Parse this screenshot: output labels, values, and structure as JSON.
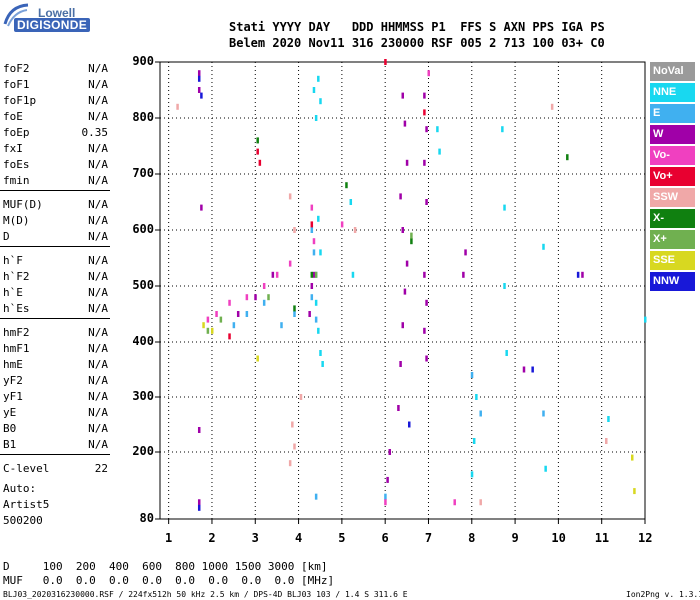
{
  "logo": {
    "top": "Lowell",
    "bottom": "DIGISONDE"
  },
  "header": {
    "line1": "Stati YYYY DAY   DDD HHMMSS P1  FFS S AXN PPS IGA PS",
    "line2": "Belem 2020 Nov11 316 230000 RSF 005 2 713 100 03+ C0"
  },
  "params": [
    {
      "k": "foF2",
      "v": "N/A"
    },
    {
      "k": "foF1",
      "v": "N/A"
    },
    {
      "k": "foF1p",
      "v": "N/A"
    },
    {
      "k": "foE",
      "v": "N/A"
    },
    {
      "k": "foEp",
      "v": "0.35"
    },
    {
      "k": "fxI",
      "v": "N/A"
    },
    {
      "k": "foEs",
      "v": "N/A"
    },
    {
      "k": "fmin",
      "v": "N/A"
    },
    {
      "k": "MUF(D)",
      "v": "N/A"
    },
    {
      "k": "M(D)",
      "v": "N/A"
    },
    {
      "k": "D",
      "v": "N/A"
    },
    {
      "k": "h`F",
      "v": "N/A"
    },
    {
      "k": "h`F2",
      "v": "N/A"
    },
    {
      "k": "h`E",
      "v": "N/A"
    },
    {
      "k": "h`Es",
      "v": "N/A"
    },
    {
      "k": "hmF2",
      "v": "N/A"
    },
    {
      "k": "hmF1",
      "v": "N/A"
    },
    {
      "k": "hmE",
      "v": "N/A"
    },
    {
      "k": "yF2",
      "v": "N/A"
    },
    {
      "k": "yF1",
      "v": "N/A"
    },
    {
      "k": "yE",
      "v": "N/A"
    },
    {
      "k": "B0",
      "v": "N/A"
    },
    {
      "k": "B1",
      "v": "N/A"
    },
    {
      "k": "C-level",
      "v": "22"
    }
  ],
  "autoscale": {
    "line1": "Auto:",
    "line2": "Artist5",
    "line3": "500200"
  },
  "legend": [
    {
      "label": "NoVal",
      "color": "#9a9a9a"
    },
    {
      "label": "NNE",
      "color": "#18d8f0"
    },
    {
      "label": "E",
      "color": "#40b0f0"
    },
    {
      "label": "W",
      "color": "#a000a8"
    },
    {
      "label": "Vo-",
      "color": "#f040c0"
    },
    {
      "label": "Vo+",
      "color": "#e80030"
    },
    {
      "label": "SSW",
      "color": "#f0a8a8"
    },
    {
      "label": "X-",
      "color": "#108010"
    },
    {
      "label": "X+",
      "color": "#70b050"
    },
    {
      "label": "SSE",
      "color": "#d8d820"
    },
    {
      "label": "NNW",
      "color": "#1818d8"
    }
  ],
  "axes": {
    "y_ticks": [
      "900",
      "800",
      "700",
      "600",
      "500",
      "400",
      "300",
      "200",
      "80"
    ],
    "x_ticks": [
      "1",
      "2",
      "3",
      "4",
      "5",
      "6",
      "7",
      "8",
      "9",
      "10",
      "11",
      "12"
    ]
  },
  "bottom": {
    "row1": "D     100  200  400  600  800 1000 1500 3000 [km]",
    "row2": "MUF   0.0  0.0  0.0  0.0  0.0  0.0  0.0  0.0 [MHz]",
    "footer_left": "BLJ03_2020316230000.RSF / 224fx512h 50 kHz 2.5 km / DPS-4D BLJ03 103 / 1.4 S 311.6 E",
    "footer_right": "Ion2Png v. 1.3.17"
  },
  "chart_data": {
    "type": "scatter",
    "title": "",
    "xlabel": "",
    "ylabel": "",
    "xlim": [
      0.8,
      12
    ],
    "ylim": [
      80,
      900
    ],
    "series": [
      {
        "name": "NNE",
        "color": "#18d8f0",
        "points": [
          [
            4.35,
            850
          ],
          [
            4.45,
            870
          ],
          [
            4.5,
            830
          ],
          [
            4.4,
            800
          ],
          [
            4.45,
            620
          ],
          [
            4.5,
            560
          ],
          [
            4.4,
            470
          ],
          [
            4.45,
            420
          ],
          [
            4.5,
            380
          ],
          [
            4.55,
            360
          ],
          [
            5.2,
            650
          ],
          [
            5.25,
            520
          ],
          [
            7.2,
            780
          ],
          [
            7.25,
            740
          ],
          [
            8.0,
            160
          ],
          [
            8.05,
            220
          ],
          [
            8.1,
            300
          ],
          [
            8.7,
            780
          ],
          [
            8.75,
            640
          ],
          [
            8.75,
            500
          ],
          [
            8.8,
            380
          ],
          [
            9.65,
            570
          ],
          [
            9.7,
            170
          ],
          [
            11.15,
            260
          ],
          [
            12.0,
            440
          ]
        ]
      },
      {
        "name": "E",
        "color": "#40b0f0",
        "points": [
          [
            4.3,
            600
          ],
          [
            4.35,
            560
          ],
          [
            4.4,
            520
          ],
          [
            4.3,
            480
          ],
          [
            4.4,
            440
          ],
          [
            3.9,
            450
          ],
          [
            3.6,
            430
          ],
          [
            2.8,
            450
          ],
          [
            2.5,
            430
          ],
          [
            3.2,
            470
          ],
          [
            8.0,
            340
          ],
          [
            8.2,
            270
          ],
          [
            9.65,
            270
          ],
          [
            6.0,
            120
          ],
          [
            4.4,
            120
          ]
        ]
      },
      {
        "name": "W",
        "color": "#a000a8",
        "points": [
          [
            1.7,
            880
          ],
          [
            1.7,
            850
          ],
          [
            1.75,
            640
          ],
          [
            6.4,
            840
          ],
          [
            6.45,
            790
          ],
          [
            6.5,
            720
          ],
          [
            6.35,
            660
          ],
          [
            6.4,
            600
          ],
          [
            6.5,
            540
          ],
          [
            6.45,
            490
          ],
          [
            6.4,
            430
          ],
          [
            6.35,
            360
          ],
          [
            6.3,
            280
          ],
          [
            6.1,
            200
          ],
          [
            6.05,
            150
          ],
          [
            6.9,
            840
          ],
          [
            6.95,
            780
          ],
          [
            6.9,
            720
          ],
          [
            6.95,
            650
          ],
          [
            6.9,
            520
          ],
          [
            6.95,
            470
          ],
          [
            6.9,
            420
          ],
          [
            6.95,
            370
          ],
          [
            7.8,
            520
          ],
          [
            7.85,
            560
          ],
          [
            4.3,
            500
          ],
          [
            4.35,
            520
          ],
          [
            4.25,
            450
          ],
          [
            3.4,
            520
          ],
          [
            3.0,
            480
          ],
          [
            2.6,
            450
          ],
          [
            1.7,
            240
          ],
          [
            1.7,
            110
          ],
          [
            10.55,
            520
          ],
          [
            9.2,
            350
          ]
        ]
      },
      {
        "name": "Vo-",
        "color": "#f040c0",
        "points": [
          [
            4.3,
            640
          ],
          [
            4.35,
            580
          ],
          [
            3.8,
            540
          ],
          [
            3.5,
            520
          ],
          [
            3.2,
            500
          ],
          [
            2.8,
            480
          ],
          [
            2.4,
            470
          ],
          [
            2.1,
            450
          ],
          [
            1.9,
            440
          ],
          [
            5.0,
            610
          ],
          [
            6.0,
            110
          ],
          [
            7.6,
            110
          ],
          [
            7.0,
            880
          ]
        ]
      },
      {
        "name": "Vo+",
        "color": "#e80030",
        "points": [
          [
            3.05,
            740
          ],
          [
            3.1,
            720
          ],
          [
            6.0,
            900
          ],
          [
            2.4,
            410
          ],
          [
            4.3,
            610
          ],
          [
            6.9,
            810
          ]
        ]
      },
      {
        "name": "SSW",
        "color": "#f0a8a8",
        "points": [
          [
            1.2,
            820
          ],
          [
            3.8,
            660
          ],
          [
            3.9,
            600
          ],
          [
            3.85,
            250
          ],
          [
            3.9,
            210
          ],
          [
            3.8,
            180
          ],
          [
            4.05,
            300
          ],
          [
            5.3,
            600
          ],
          [
            9.85,
            820
          ],
          [
            11.1,
            220
          ],
          [
            8.2,
            110
          ]
        ]
      },
      {
        "name": "X-",
        "color": "#108010",
        "points": [
          [
            3.05,
            760
          ],
          [
            5.1,
            680
          ],
          [
            6.6,
            580
          ],
          [
            10.2,
            730
          ],
          [
            4.3,
            520
          ],
          [
            3.9,
            460
          ]
        ]
      },
      {
        "name": "X+",
        "color": "#70b050",
        "points": [
          [
            1.9,
            420
          ],
          [
            2.2,
            440
          ],
          [
            3.3,
            480
          ],
          [
            4.4,
            520
          ],
          [
            6.6,
            590
          ]
        ]
      },
      {
        "name": "SSE",
        "color": "#d8d820",
        "points": [
          [
            1.8,
            430
          ],
          [
            2.0,
            420
          ],
          [
            3.05,
            370
          ],
          [
            11.7,
            190
          ],
          [
            11.75,
            130
          ]
        ]
      },
      {
        "name": "NNW",
        "color": "#1818d8",
        "points": [
          [
            1.7,
            870
          ],
          [
            1.75,
            840
          ],
          [
            1.7,
            100
          ],
          [
            6.55,
            250
          ],
          [
            9.4,
            350
          ],
          [
            10.45,
            520
          ]
        ]
      },
      {
        "name": "NoVal",
        "color": "#9a9a9a",
        "points": []
      }
    ]
  }
}
